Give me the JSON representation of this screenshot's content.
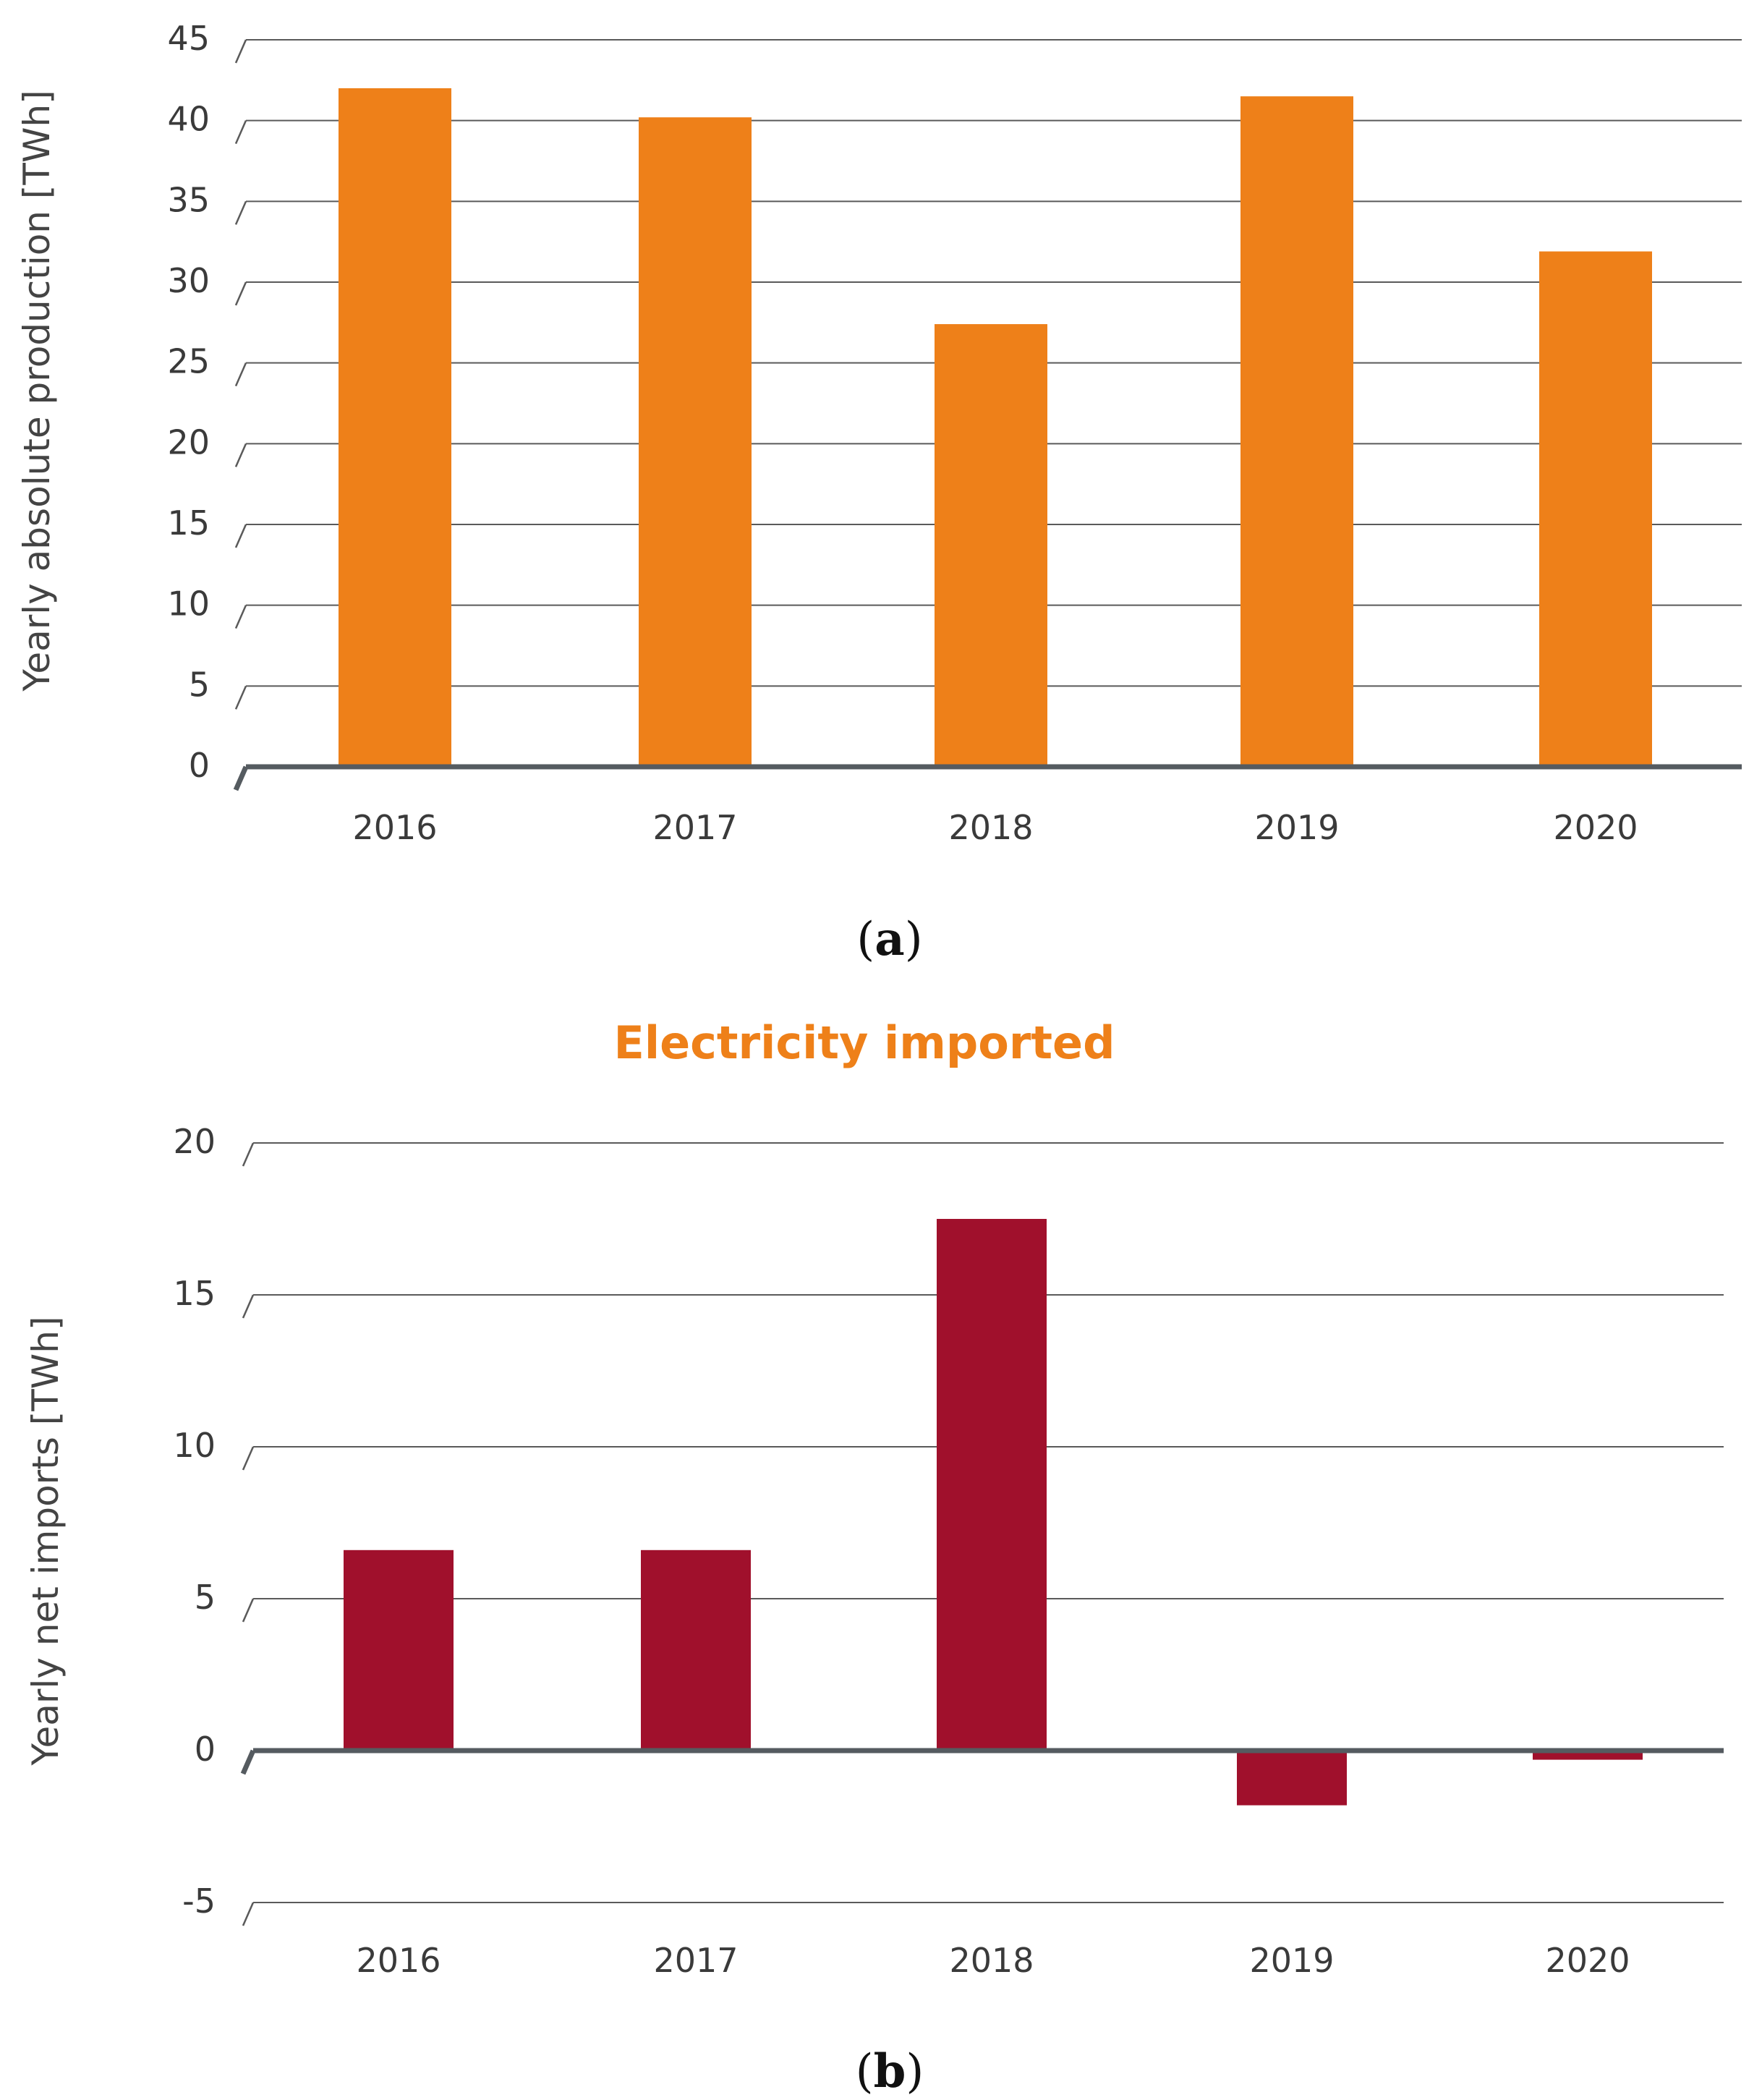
{
  "colors": {
    "orange": "#EE8019",
    "crimson": "#A0102C",
    "grid": "#5a5a5a",
    "axis": "#555b60"
  },
  "chart_data": [
    {
      "type": "bar",
      "title": "",
      "caption": {
        "open": "(",
        "letter": "a",
        "close": ")"
      },
      "categories": [
        "2016",
        "2017",
        "2018",
        "2019",
        "2020"
      ],
      "values": [
        42.0,
        40.2,
        27.4,
        41.5,
        31.9
      ],
      "xlabel": "",
      "ylabel": "Yearly absolute production [TWh]",
      "ylim": [
        0,
        45
      ],
      "yticks": [
        "0",
        "5",
        "10",
        "15",
        "20",
        "25",
        "30",
        "35",
        "40",
        "45"
      ],
      "color": "#EE8019",
      "grid": true
    },
    {
      "type": "bar",
      "title": "Electricity imported",
      "caption": {
        "open": "(",
        "letter": "b",
        "close": ")"
      },
      "categories": [
        "2016",
        "2017",
        "2018",
        "2019",
        "2020"
      ],
      "values": [
        6.6,
        6.6,
        17.5,
        -1.8,
        -0.3
      ],
      "xlabel": "",
      "ylabel": "Yearly net imports [TWh]",
      "ylim": [
        -5,
        20
      ],
      "yticks": [
        "-5",
        "0",
        "5",
        "10",
        "15",
        "20"
      ],
      "color": "#A0102C",
      "grid": true
    }
  ]
}
